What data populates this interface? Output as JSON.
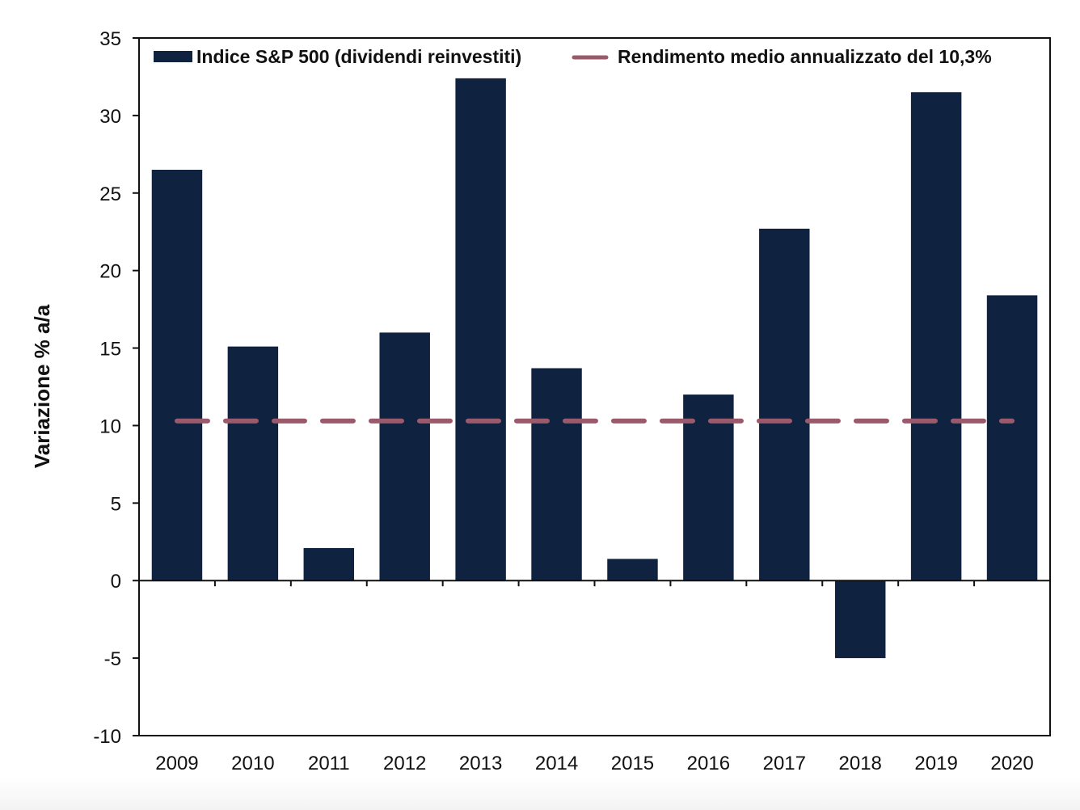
{
  "chart_data": {
    "type": "bar",
    "title": "",
    "xlabel": "",
    "ylabel": "Variazione % a/a",
    "ylim": [
      -10,
      35
    ],
    "yticks": [
      35,
      30,
      25,
      20,
      15,
      10,
      5,
      0,
      -5,
      -10
    ],
    "categories": [
      "2009",
      "2010",
      "2011",
      "2012",
      "2013",
      "2014",
      "2015",
      "2016",
      "2017",
      "2018",
      "2019",
      "2020"
    ],
    "series": [
      {
        "name": "Indice S&P 500 (dividendi reinvestiti)",
        "type": "bar",
        "color": "#0f2341",
        "values": [
          26.5,
          15.1,
          2.1,
          16.0,
          32.4,
          13.7,
          1.4,
          12.0,
          22.7,
          -5.0,
          31.5,
          18.4
        ]
      },
      {
        "name": "Rendimento medio annualizzato del 10,3%",
        "type": "line",
        "style": "dashed",
        "color": "#9b5a6c",
        "value": 10.3
      }
    ],
    "grid": false,
    "legend": "top-inside"
  }
}
